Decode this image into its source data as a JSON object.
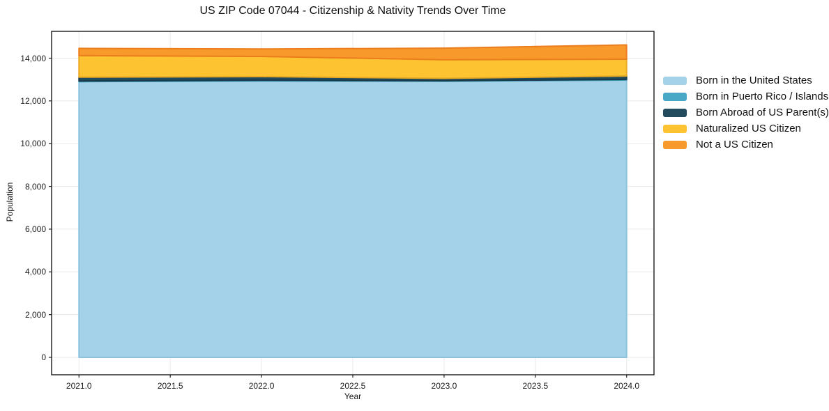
{
  "chart_data": {
    "type": "area",
    "stacked": true,
    "title": "US ZIP Code 07044 - Citizenship & Nativity Trends Over Time",
    "xlabel": "Year",
    "ylabel": "Population",
    "x": [
      2021,
      2022,
      2023,
      2024
    ],
    "series": [
      {
        "name": "Born in the United States",
        "color": "#A3D2E9",
        "edge": "#8CC2DE",
        "values": [
          12900,
          12935,
          12920,
          12975
        ]
      },
      {
        "name": "Born in Puerto Rico / Islands",
        "color": "#49A8C5",
        "edge": "#3D93AF",
        "values": [
          35,
          35,
          25,
          35
        ]
      },
      {
        "name": "Born Abroad of US Parent(s)",
        "color": "#234B5E",
        "edge": "#173A4A",
        "values": [
          175,
          165,
          110,
          155
        ]
      },
      {
        "name": "Naturalized US Citizen",
        "color": "#FDC330",
        "edge": "#E9A922",
        "values": [
          1010,
          945,
          870,
          785
        ]
      },
      {
        "name": "Not a US Citizen",
        "color": "#F8992B",
        "edge": "#EC7D1D",
        "values": [
          340,
          350,
          545,
          670
        ]
      }
    ],
    "xticks": [
      2021.0,
      2021.5,
      2022.0,
      2022.5,
      2023.0,
      2023.5,
      2024.0
    ],
    "yticks": [
      0,
      2000,
      4000,
      6000,
      8000,
      10000,
      12000,
      14000
    ],
    "xlim": [
      2020.85,
      2024.15
    ],
    "ylim": [
      -815,
      15255
    ],
    "grid": true,
    "grid_color": "#E9E9E9",
    "spine_color": "#1a1a1a",
    "legend_position": "right-outside"
  }
}
